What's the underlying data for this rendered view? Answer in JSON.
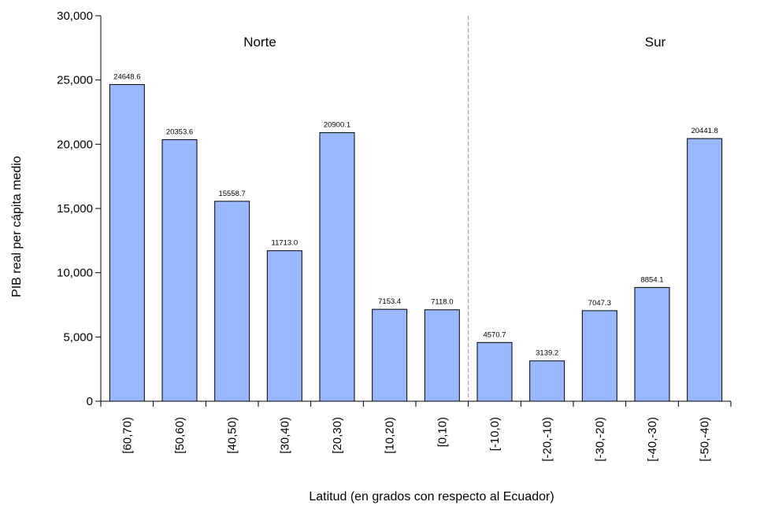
{
  "chart_data": {
    "type": "bar",
    "title": "",
    "xlabel": "Latitud (en grados con respecto al Ecuador)",
    "ylabel": "PIB real per cápita medio",
    "ylim": [
      0,
      30000
    ],
    "yticks": [
      0,
      5000,
      10000,
      15000,
      20000,
      25000,
      30000
    ],
    "ytick_labels": [
      "0",
      "5,000",
      "10,000",
      "15,000",
      "20,000",
      "25,000",
      "30,000"
    ],
    "categories": [
      "[60,70)",
      "[50,60)",
      "[40,50)",
      "[30,40)",
      "[20,30)",
      "[10,20)",
      "[0,10)",
      "[-10,0)",
      "[-20,-10)",
      "[-30,-20)",
      "[-40,-30)",
      "[-50,-40)"
    ],
    "values": [
      24648.6,
      20353.6,
      15558.7,
      11713.0,
      20900.1,
      7153.4,
      7118.0,
      4570.7,
      3139.2,
      7047.3,
      8854.1,
      20441.8
    ],
    "data_labels": [
      "24648.6",
      "20353.6",
      "15558.7",
      "11713.0",
      "20900.1",
      "7153.4",
      "7118.0",
      "4570.7",
      "3139.2",
      "7047.3",
      "8854.1",
      "20441.8"
    ],
    "regions": [
      {
        "label": "Norte"
      },
      {
        "label": "Sur"
      }
    ],
    "bar_color": "#99b8ff",
    "grid": false,
    "legend": "none"
  }
}
